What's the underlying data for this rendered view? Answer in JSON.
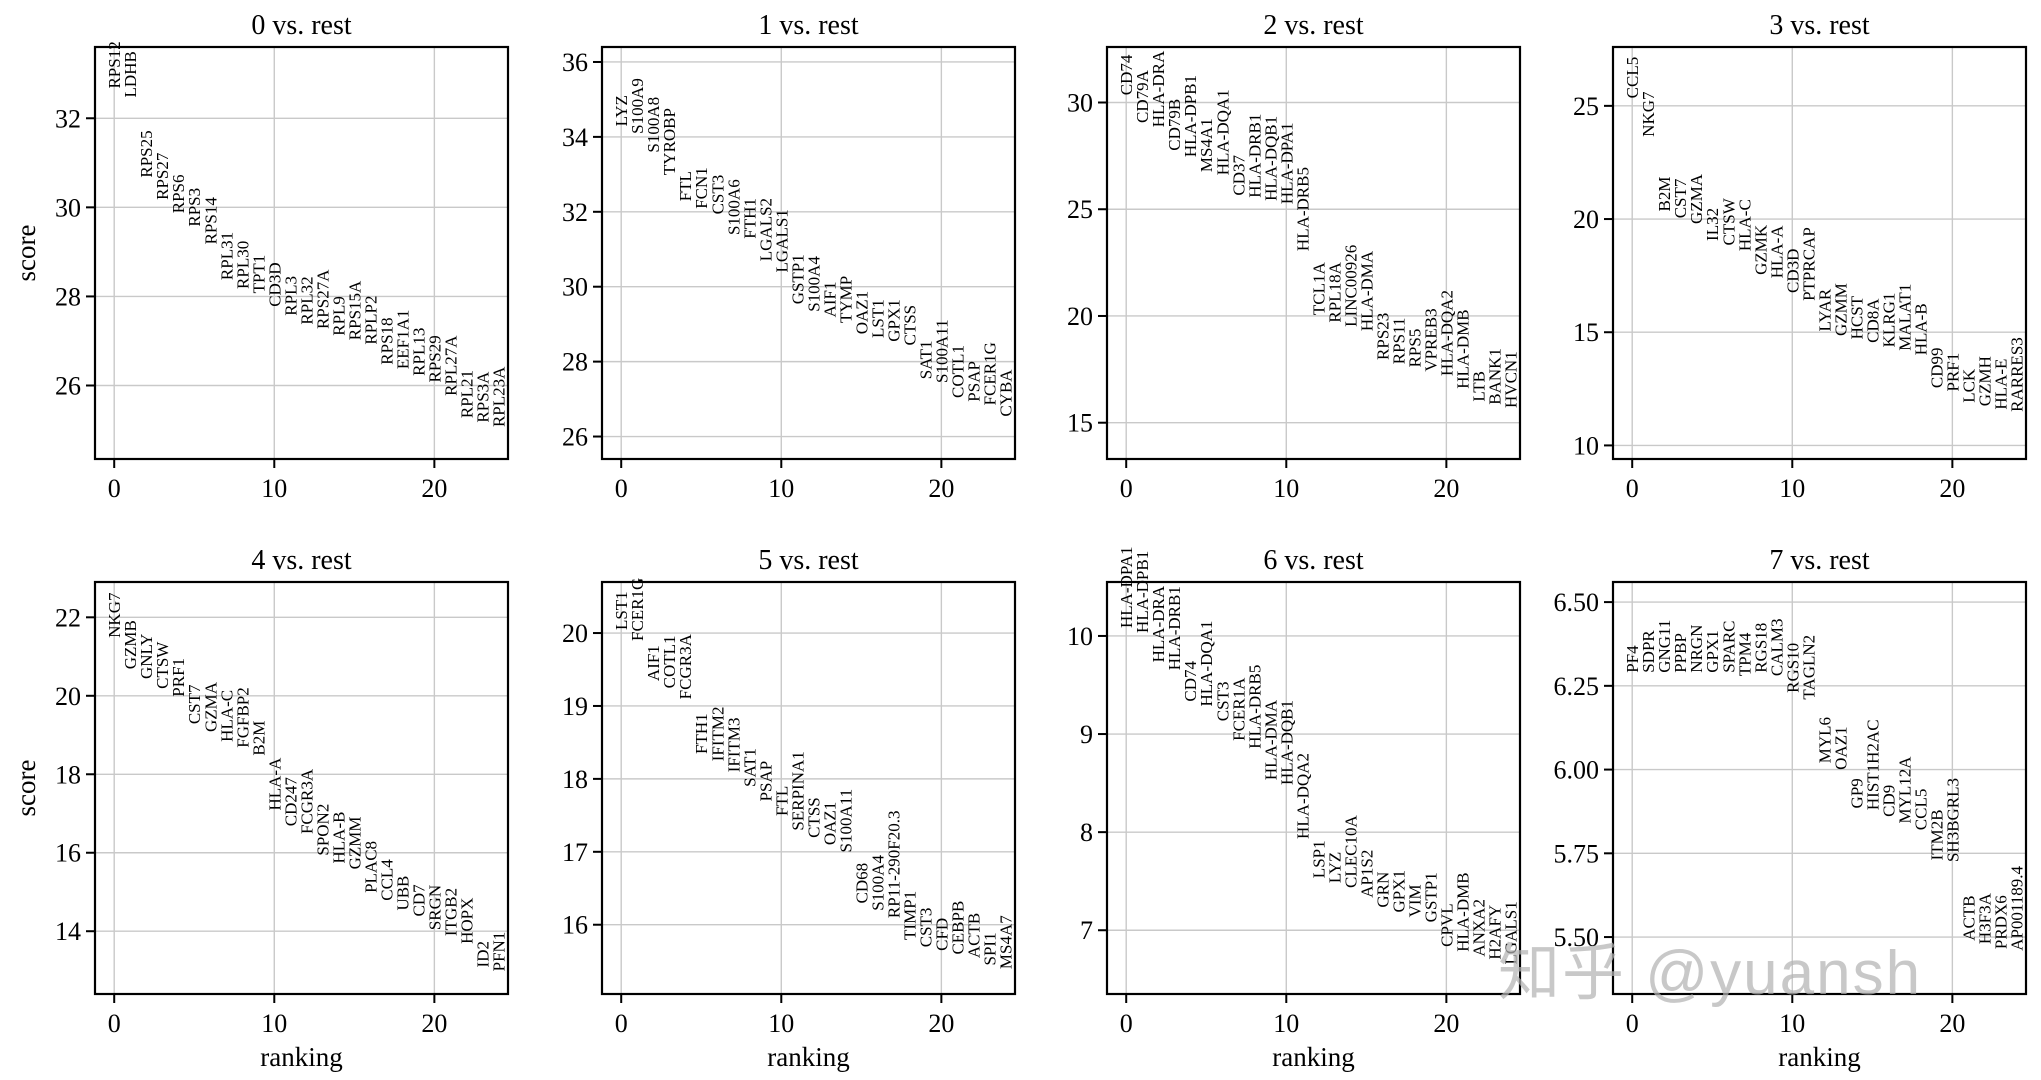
{
  "figure": {
    "background": "#ffffff",
    "text_color": "#000000",
    "grid_color": "#c9c9c9",
    "spine_color": "#000000",
    "xlabel": "ranking",
    "ylabel": "score",
    "xticks": [
      0,
      10,
      20
    ],
    "watermark": {
      "text": "知乎 @yuansh",
      "color": "#b3b3b3"
    }
  },
  "chart_data": [
    {
      "type": "scatter",
      "title": "0 vs. rest",
      "xlabel": "ranking",
      "ylabel": "score",
      "xlim": [
        -1.2,
        24.6
      ],
      "ylim": [
        24.35,
        33.6
      ],
      "yticks": [
        26,
        28,
        30,
        32
      ],
      "ytick_labels": [
        "26",
        "28",
        "30",
        "32"
      ],
      "genes": [
        "RPS12",
        "LDHB",
        "RPS25",
        "RPS27",
        "RPS6",
        "RPS3",
        "RPS14",
        "RPL31",
        "RPL30",
        "TPT1",
        "CD3D",
        "RPL3",
        "RPL32",
        "RPS27A",
        "RPL9",
        "RPS15A",
        "RPLP2",
        "RPS18",
        "EEF1A1",
        "RPL13",
        "RPS29",
        "RPL27A",
        "RPL21",
        "RPS3A",
        "RPL23A"
      ],
      "scores": [
        32.6,
        32.4,
        30.6,
        30.1,
        29.8,
        29.5,
        29.1,
        28.3,
        28.1,
        28.0,
        27.7,
        27.5,
        27.3,
        27.2,
        27.05,
        26.95,
        26.85,
        26.4,
        26.3,
        26.15,
        26.0,
        25.7,
        25.2,
        25.1,
        25.0
      ]
    },
    {
      "type": "scatter",
      "title": "1 vs. rest",
      "xlabel": "ranking",
      "ylabel": "score",
      "xlim": [
        -1.2,
        24.6
      ],
      "ylim": [
        25.4,
        36.4
      ],
      "yticks": [
        26,
        28,
        30,
        32,
        34,
        36
      ],
      "ytick_labels": [
        "26",
        "28",
        "30",
        "32",
        "34",
        "36"
      ],
      "genes": [
        "LYZ",
        "S100A9",
        "S100A8",
        "TYROBP",
        "FTL",
        "FCN1",
        "CST3",
        "S100A6",
        "FTH1",
        "LGALS2",
        "LGALS1",
        "GSTP1",
        "S100A4",
        "AIF1",
        "TYMP",
        "OAZ1",
        "LST1",
        "GPX1",
        "CTSS",
        "SAT1",
        "S100A11",
        "COTL1",
        "PSAP",
        "FCER1G",
        "CYBA"
      ],
      "scores": [
        34.2,
        34.0,
        33.5,
        32.9,
        32.2,
        32.0,
        31.85,
        31.3,
        31.2,
        30.6,
        30.3,
        29.45,
        29.25,
        29.1,
        28.95,
        28.65,
        28.55,
        28.45,
        28.35,
        27.45,
        27.35,
        26.95,
        26.85,
        26.75,
        26.45
      ]
    },
    {
      "type": "scatter",
      "title": "2 vs. rest",
      "xlabel": "ranking",
      "ylabel": "score",
      "xlim": [
        -1.2,
        24.6
      ],
      "ylim": [
        13.3,
        32.6
      ],
      "yticks": [
        15,
        20,
        25,
        30
      ],
      "ytick_labels": [
        "15",
        "20",
        "25",
        "30"
      ],
      "genes": [
        "CD74",
        "CD79A",
        "HLA-DRA",
        "CD79B",
        "HLA-DPB1",
        "MS4A1",
        "HLA-DQA1",
        "CD37",
        "HLA-DRB1",
        "HLA-DQB1",
        "HLA-DPA1",
        "HLA-DRB5",
        "TCL1A",
        "RPL18A",
        "LINC00926",
        "HLA-DMA",
        "RPS23",
        "RPS11",
        "RPS5",
        "VPREB3",
        "HLA-DQA2",
        "HLA-DMB",
        "LTB",
        "BANK1",
        "HVCN1"
      ],
      "scores": [
        30.2,
        28.9,
        28.7,
        27.6,
        27.3,
        26.6,
        26.45,
        25.5,
        25.4,
        25.25,
        25.1,
        22.9,
        19.9,
        19.55,
        19.35,
        19.15,
        17.8,
        17.6,
        17.45,
        17.25,
        17.05,
        16.45,
        15.85,
        15.7,
        15.55
      ]
    },
    {
      "type": "scatter",
      "title": "3 vs. rest",
      "xlabel": "ranking",
      "ylabel": "score",
      "xlim": [
        -1.2,
        24.6
      ],
      "ylim": [
        9.4,
        27.6
      ],
      "yticks": [
        10,
        15,
        20,
        25
      ],
      "ytick_labels": [
        "10",
        "15",
        "20",
        "25"
      ],
      "genes": [
        "CCL5",
        "NKG7",
        "B2M",
        "CST7",
        "GZMA",
        "IL32",
        "CTSW",
        "HLA-C",
        "GZMK",
        "HLA-A",
        "CD3D",
        "PTPRCAP",
        "LYAR",
        "GZMM",
        "HCST",
        "CD8A",
        "KLRG1",
        "MALAT1",
        "HLA-B",
        "CD99",
        "PRF1",
        "LCK",
        "GZMH",
        "HLA-E",
        "RARRES3"
      ],
      "scores": [
        25.2,
        23.5,
        20.2,
        19.9,
        19.65,
        18.9,
        18.7,
        18.45,
        17.4,
        17.25,
        16.6,
        16.25,
        14.9,
        14.7,
        14.55,
        14.4,
        14.2,
        14.05,
        13.85,
        12.4,
        12.25,
        11.75,
        11.6,
        11.45,
        11.35
      ]
    },
    {
      "type": "scatter",
      "title": "4 vs. rest",
      "xlabel": "ranking",
      "ylabel": "score",
      "xlim": [
        -1.2,
        24.6
      ],
      "ylim": [
        12.4,
        22.9
      ],
      "yticks": [
        14,
        16,
        18,
        20,
        22
      ],
      "ytick_labels": [
        "14",
        "16",
        "18",
        "20",
        "22"
      ],
      "genes": [
        "NKG7",
        "GZMB",
        "GNLY",
        "CTSW",
        "PRF1",
        "CST7",
        "GZMA",
        "HLA-C",
        "FGFBP2",
        "B2M",
        "HLA-A",
        "CD247",
        "FCGR3A",
        "SPON2",
        "HLA-B",
        "GZMM",
        "PLAC8",
        "CCL4",
        "UBB",
        "CD7",
        "SRGN",
        "ITGB2",
        "HOPX",
        "ID2",
        "PFN1"
      ],
      "scores": [
        21.4,
        20.6,
        20.35,
        20.1,
        19.9,
        19.2,
        19.0,
        18.75,
        18.6,
        18.4,
        17.0,
        16.6,
        16.4,
        15.85,
        15.65,
        15.5,
        14.9,
        14.7,
        14.45,
        14.3,
        13.95,
        13.8,
        13.6,
        13.0,
        12.9
      ]
    },
    {
      "type": "scatter",
      "title": "5 vs. rest",
      "xlabel": "ranking",
      "ylabel": "score",
      "xlim": [
        -1.2,
        24.6
      ],
      "ylim": [
        15.05,
        20.7
      ],
      "yticks": [
        16,
        17,
        18,
        19,
        20
      ],
      "ytick_labels": [
        "16",
        "17",
        "18",
        "19",
        "20"
      ],
      "genes": [
        "LST1",
        "FCER1G",
        "AIF1",
        "COTL1",
        "FCGR3A",
        "FTH1",
        "IFITM2",
        "IFITM3",
        "SAT1",
        "PSAP",
        "FTL",
        "SERPINA1",
        "CTSS",
        "OAZ1",
        "S100A11",
        "CD68",
        "S100A4",
        "RP11-290F20.3",
        "TIMP1",
        "CST3",
        "CFD",
        "CEBPB",
        "ACTB",
        "SPI1",
        "MS4A7"
      ],
      "scores": [
        20.0,
        19.85,
        19.3,
        19.2,
        19.05,
        18.3,
        18.2,
        18.05,
        17.85,
        17.65,
        17.45,
        17.25,
        17.15,
        17.05,
        16.95,
        16.25,
        16.15,
        16.05,
        15.75,
        15.65,
        15.6,
        15.55,
        15.5,
        15.4,
        15.35
      ]
    },
    {
      "type": "scatter",
      "title": "6 vs. rest",
      "xlabel": "ranking",
      "ylabel": "score",
      "xlim": [
        -1.2,
        24.6
      ],
      "ylim": [
        6.35,
        10.55
      ],
      "yticks": [
        7,
        8,
        9,
        10
      ],
      "ytick_labels": [
        "7",
        "8",
        "9",
        "10"
      ],
      "genes": [
        "HLA-DPA1",
        "HLA-DPB1",
        "HLA-DRA",
        "HLA-DRB1",
        "CD74",
        "HLA-DQA1",
        "CST3",
        "FCER1A",
        "HLA-DRB5",
        "HLA-DMA",
        "HLA-DQB1",
        "HLA-DQA2",
        "LSP1",
        "LYZ",
        "CLEC10A",
        "AP1S2",
        "GRN",
        "GPX1",
        "VIM",
        "GSTP1",
        "CPVL",
        "HLA-DMB",
        "ANXA2",
        "H2AFY",
        "LGALS1"
      ],
      "scores": [
        10.05,
        10.0,
        9.7,
        9.62,
        9.3,
        9.25,
        9.1,
        8.9,
        8.82,
        8.5,
        8.45,
        7.9,
        7.5,
        7.45,
        7.4,
        7.3,
        7.2,
        7.15,
        7.1,
        7.05,
        6.8,
        6.75,
        6.7,
        6.67,
        6.62
      ]
    },
    {
      "type": "scatter",
      "title": "7 vs. rest",
      "xlabel": "ranking",
      "ylabel": "score",
      "xlim": [
        -1.2,
        24.6
      ],
      "ylim": [
        5.33,
        6.56
      ],
      "yticks": [
        5.5,
        5.75,
        6.0,
        6.25,
        6.5
      ],
      "ytick_labels": [
        "5.50",
        "5.75",
        "6.00",
        "6.25",
        "6.50"
      ],
      "genes": [
        "PF4",
        "SDPR",
        "GNG11",
        "PPBP",
        "NRGN",
        "GPX1",
        "SPARC",
        "TPM4",
        "RGS18",
        "CALM3",
        "RGS10",
        "TAGLN2",
        "MYL6",
        "OAZ1",
        "GP9",
        "HIST1H2AC",
        "CD9",
        "MYL12A",
        "CCL5",
        "ITM2B",
        "SH3BGRL3",
        "ACTB",
        "H3F3A",
        "PRDX6",
        "AP001189.4"
      ],
      "scores": [
        6.28,
        6.28,
        6.28,
        6.28,
        6.28,
        6.28,
        6.28,
        6.27,
        6.28,
        6.27,
        6.22,
        6.2,
        6.01,
        5.99,
        5.875,
        5.87,
        5.85,
        5.83,
        5.81,
        5.72,
        5.715,
        5.48,
        5.47,
        5.455,
        5.45
      ]
    }
  ]
}
